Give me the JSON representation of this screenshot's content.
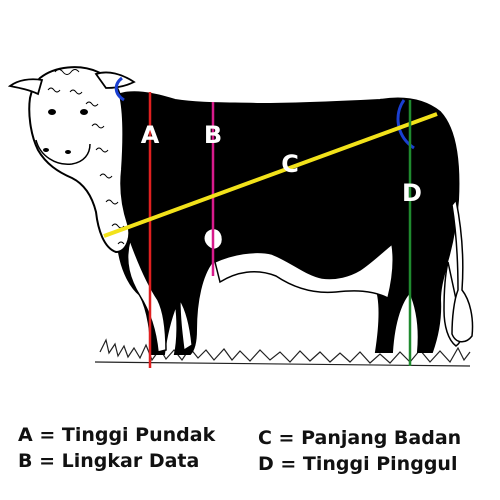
{
  "measurements": {
    "A": {
      "letter": "A",
      "color": "#e02020"
    },
    "B": {
      "letter": "B",
      "color": "#d81b8c"
    },
    "C": {
      "letter": "C",
      "color": "#f2e21a"
    },
    "D": {
      "letter": "D",
      "color": "#1f8a2e"
    }
  },
  "legend": {
    "a": "A = Tinggi Pundak",
    "b": "B = Lingkar Data",
    "c": "C = Panjang Badan",
    "d": "D = Tinggi Pinggul"
  },
  "arc_color": "#1a3fd1"
}
